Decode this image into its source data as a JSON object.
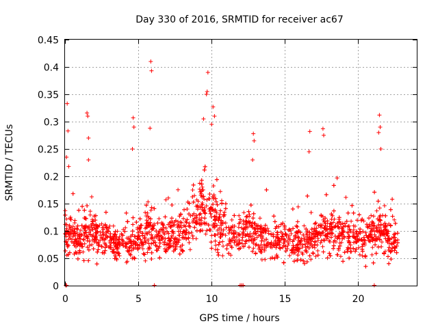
{
  "chart_data": {
    "type": "scatter",
    "title": "Day 330 of 2016, SRMTID for receiver ac67",
    "xlabel": "GPS time / hours",
    "ylabel": "SRMTID / TECUs",
    "xlim": [
      0,
      24
    ],
    "ylim": [
      0,
      0.45
    ],
    "xticks": [
      0,
      5,
      10,
      15,
      20
    ],
    "xtick_labels": [
      "0",
      "5",
      "10",
      "15",
      "20"
    ],
    "yticks": [
      0,
      0.05,
      0.1,
      0.15,
      0.2,
      0.25,
      0.3,
      0.35,
      0.4,
      0.45
    ],
    "ytick_labels": [
      "0",
      "0.05",
      "0.1",
      "0.15",
      "0.2",
      "0.25",
      "0.3",
      "0.35",
      "0.4",
      "0.45"
    ],
    "grid": true,
    "marker": "plus",
    "color": "#ff0000",
    "data_range_hours": [
      0,
      22.7
    ],
    "median_profile": [
      [
        0.0,
        0.1
      ],
      [
        0.5,
        0.09
      ],
      [
        1.0,
        0.085
      ],
      [
        1.5,
        0.1
      ],
      [
        2.0,
        0.095
      ],
      [
        2.5,
        0.09
      ],
      [
        3.0,
        0.085
      ],
      [
        3.5,
        0.075
      ],
      [
        4.0,
        0.08
      ],
      [
        4.5,
        0.075
      ],
      [
        5.0,
        0.09
      ],
      [
        5.5,
        0.1
      ],
      [
        6.0,
        0.1
      ],
      [
        6.5,
        0.095
      ],
      [
        7.0,
        0.085
      ],
      [
        7.5,
        0.085
      ],
      [
        8.0,
        0.095
      ],
      [
        8.5,
        0.12
      ],
      [
        9.0,
        0.13
      ],
      [
        9.5,
        0.15
      ],
      [
        10.0,
        0.13
      ],
      [
        10.5,
        0.11
      ],
      [
        11.0,
        0.1
      ],
      [
        11.5,
        0.09
      ],
      [
        12.0,
        0.09
      ],
      [
        12.5,
        0.1
      ],
      [
        13.0,
        0.09
      ],
      [
        13.5,
        0.085
      ],
      [
        14.0,
        0.085
      ],
      [
        14.5,
        0.085
      ],
      [
        15.0,
        0.08
      ],
      [
        15.5,
        0.08
      ],
      [
        16.0,
        0.075
      ],
      [
        16.5,
        0.08
      ],
      [
        17.0,
        0.09
      ],
      [
        17.5,
        0.1
      ],
      [
        18.0,
        0.1
      ],
      [
        18.5,
        0.1
      ],
      [
        19.0,
        0.09
      ],
      [
        19.5,
        0.085
      ],
      [
        20.0,
        0.09
      ],
      [
        20.5,
        0.095
      ],
      [
        21.0,
        0.1
      ],
      [
        21.5,
        0.105
      ],
      [
        22.0,
        0.09
      ],
      [
        22.7,
        0.08
      ]
    ],
    "notable_points": [
      [
        0.15,
        0.333
      ],
      [
        0.2,
        0.283
      ],
      [
        0.1,
        0.235
      ],
      [
        0.25,
        0.218
      ],
      [
        1.5,
        0.316
      ],
      [
        1.55,
        0.31
      ],
      [
        1.6,
        0.27
      ],
      [
        1.6,
        0.23
      ],
      [
        4.65,
        0.307
      ],
      [
        4.7,
        0.29
      ],
      [
        4.6,
        0.25
      ],
      [
        5.85,
        0.41
      ],
      [
        5.9,
        0.393
      ],
      [
        5.8,
        0.288
      ],
      [
        9.45,
        0.305
      ],
      [
        9.65,
        0.35
      ],
      [
        9.7,
        0.355
      ],
      [
        9.75,
        0.39
      ],
      [
        10.1,
        0.327
      ],
      [
        10.2,
        0.31
      ],
      [
        10.0,
        0.295
      ],
      [
        12.85,
        0.278
      ],
      [
        12.9,
        0.265
      ],
      [
        12.8,
        0.23
      ],
      [
        16.7,
        0.282
      ],
      [
        16.65,
        0.245
      ],
      [
        17.6,
        0.287
      ],
      [
        17.65,
        0.275
      ],
      [
        21.45,
        0.312
      ],
      [
        21.5,
        0.29
      ],
      [
        21.4,
        0.28
      ],
      [
        21.55,
        0.25
      ]
    ],
    "zero_points": [
      0.05,
      0.08,
      0.1,
      6.1,
      11.95,
      12.05,
      12.15,
      21.1
    ]
  }
}
